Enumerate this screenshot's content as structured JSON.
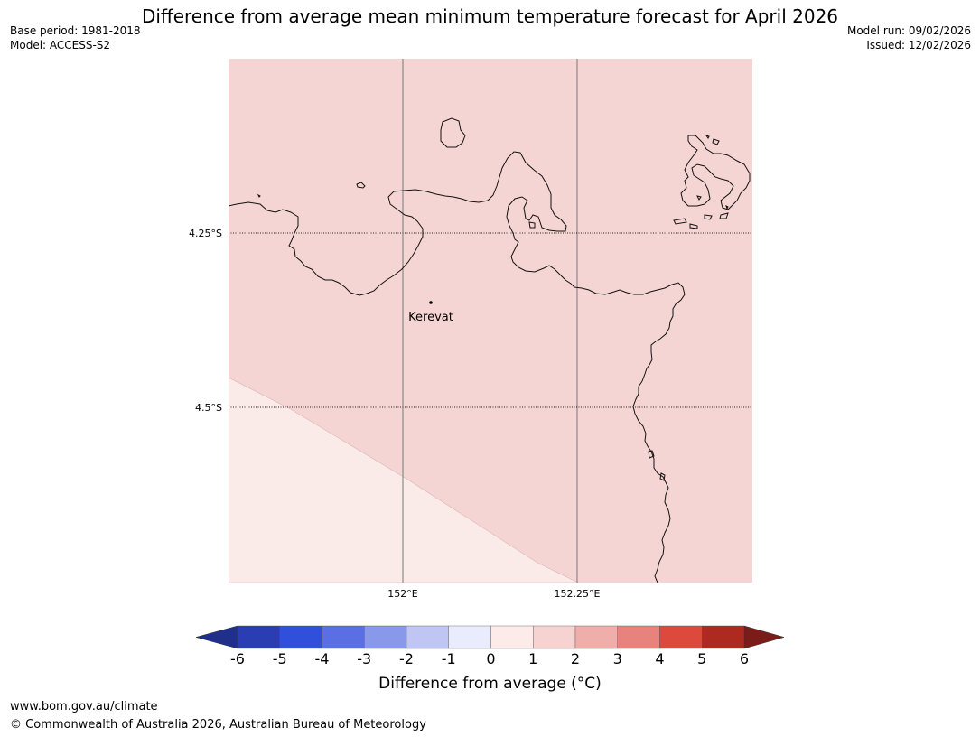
{
  "title": "Difference from average mean minimum temperature forecast for April 2026",
  "meta_left": {
    "base_period": "Base period: 1981-2018",
    "model": "Model: ACCESS-S2"
  },
  "meta_right": {
    "model_run": "Model run: 09/02/2026",
    "issued": "Issued: 12/02/2026"
  },
  "map": {
    "place": "Kerevat",
    "lat_labels": [
      "4.25°S",
      "4.5°S"
    ],
    "lon_labels": [
      "152°E",
      "152.25°E"
    ],
    "fill_colors": {
      "main": "#f5d5d3",
      "lower_left": "#faebe9"
    }
  },
  "colorbar": {
    "title": "Difference from average (°C)",
    "ticks": [
      "-6",
      "-5",
      "-4",
      "-3",
      "-2",
      "-1",
      "0",
      "1",
      "2",
      "3",
      "4",
      "5",
      "6"
    ],
    "colors": [
      "#1f2f8a",
      "#2a3db2",
      "#3050dc",
      "#5a6fe3",
      "#8898ea",
      "#c0c6f4",
      "#e9ecfc",
      "#fcebe9",
      "#f6d3d1",
      "#f0aeaa",
      "#e8827d",
      "#dc4a3d",
      "#ad2a20",
      "#7a1c18"
    ]
  },
  "footer": {
    "url": "www.bom.gov.au/climate",
    "copyright": "© Commonwealth of Australia 2026, Australian Bureau of Meteorology"
  }
}
